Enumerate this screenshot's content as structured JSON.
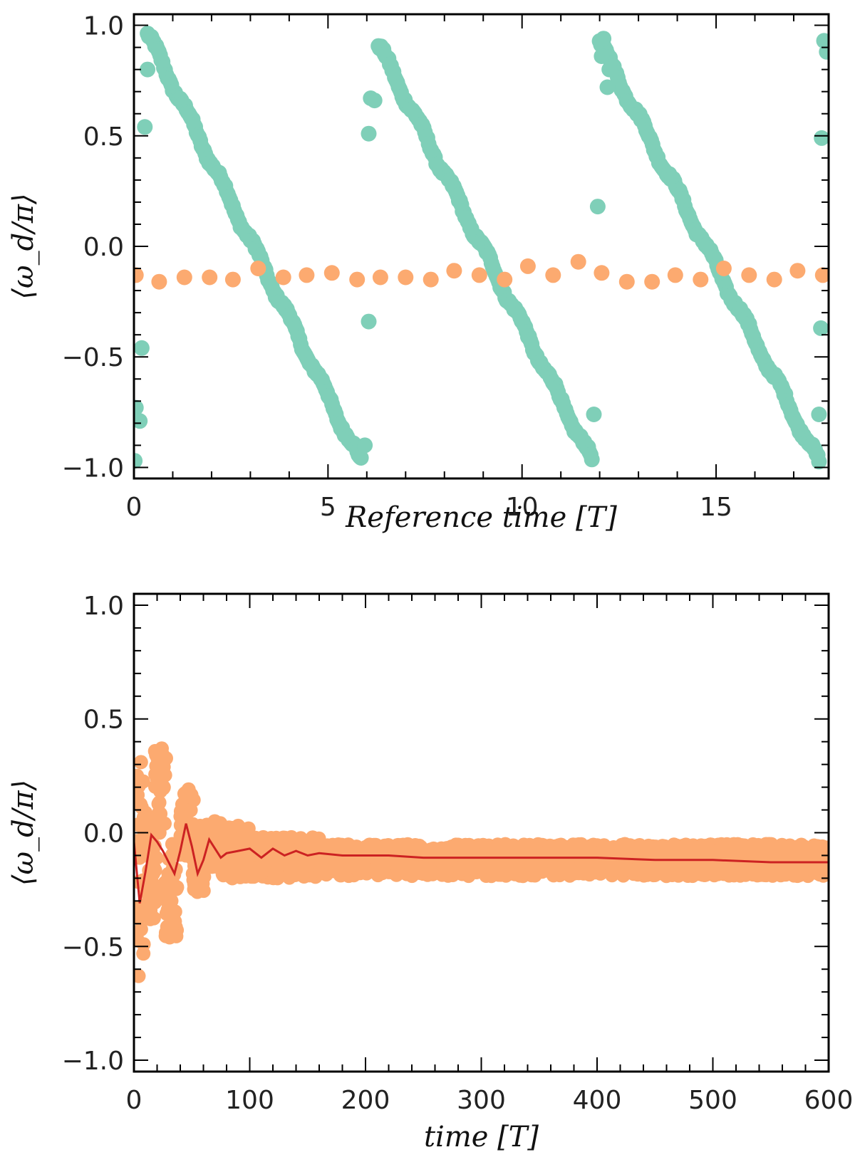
{
  "chart_data": [
    {
      "type": "scatter",
      "xlabel": "Reference time [T]",
      "ylabel": "⟨ω_d/π⟩",
      "xlim": [
        0,
        17.9
      ],
      "ylim": [
        -1.05,
        1.05
      ],
      "xticks": [
        0,
        5,
        10,
        15
      ],
      "xtick_labels": [
        "0",
        "5",
        "10",
        "15"
      ],
      "yticks": [
        1.0,
        0.5,
        0.0,
        -0.5,
        -1.0
      ],
      "ytick_labels": [
        "1.0",
        "0.5",
        "0.0",
        "−0.5",
        "−1.0"
      ],
      "colors": {
        "teal": "#7fcfb8",
        "orange": "#fcaa70"
      },
      "series": [
        {
          "name": "teal sawtooth",
          "color": "#7fcfb8",
          "segments": [
            {
              "x_start": 0.35,
              "x_end": 5.85,
              "y_start": 0.96,
              "y_end": -0.98
            },
            {
              "x_start": 6.3,
              "x_end": 11.8,
              "y_start": 0.91,
              "y_end": -0.97
            },
            {
              "x_start": 12.0,
              "x_end": 17.65,
              "y_start": 0.92,
              "y_end": -0.98
            }
          ],
          "outliers": [
            [
              0.05,
              -0.73
            ],
            [
              0.15,
              -0.79
            ],
            [
              0.02,
              -0.97
            ],
            [
              0.2,
              -0.46
            ],
            [
              0.28,
              0.54
            ],
            [
              0.35,
              0.8
            ],
            [
              5.95,
              -0.9
            ],
            [
              6.05,
              -0.34
            ],
            [
              6.05,
              0.51
            ],
            [
              6.1,
              0.67
            ],
            [
              6.2,
              0.66
            ],
            [
              11.85,
              -0.76
            ],
            [
              11.95,
              0.18
            ],
            [
              12.05,
              0.86
            ],
            [
              12.1,
              0.94
            ],
            [
              12.2,
              0.72
            ],
            [
              12.25,
              0.8
            ],
            [
              17.65,
              -0.76
            ],
            [
              17.7,
              -0.37
            ],
            [
              17.72,
              0.49
            ],
            [
              17.78,
              0.93
            ],
            [
              17.85,
              0.88
            ]
          ]
        },
        {
          "name": "orange",
          "color": "#fcaa70",
          "points": [
            [
              0.05,
              -0.13
            ],
            [
              0.65,
              -0.16
            ],
            [
              1.3,
              -0.14
            ],
            [
              1.95,
              -0.14
            ],
            [
              2.55,
              -0.15
            ],
            [
              3.2,
              -0.1
            ],
            [
              3.85,
              -0.14
            ],
            [
              4.45,
              -0.13
            ],
            [
              5.1,
              -0.12
            ],
            [
              5.75,
              -0.15
            ],
            [
              6.35,
              -0.14
            ],
            [
              7.0,
              -0.14
            ],
            [
              7.65,
              -0.15
            ],
            [
              8.25,
              -0.11
            ],
            [
              8.9,
              -0.13
            ],
            [
              9.55,
              -0.15
            ],
            [
              10.15,
              -0.09
            ],
            [
              10.8,
              -0.13
            ],
            [
              11.45,
              -0.07
            ],
            [
              12.05,
              -0.12
            ],
            [
              12.7,
              -0.16
            ],
            [
              13.35,
              -0.16
            ],
            [
              13.95,
              -0.13
            ],
            [
              14.6,
              -0.15
            ],
            [
              15.2,
              -0.1
            ],
            [
              15.85,
              -0.13
            ],
            [
              16.5,
              -0.15
            ],
            [
              17.1,
              -0.11
            ],
            [
              17.75,
              -0.13
            ]
          ]
        }
      ]
    },
    {
      "type": "scatter",
      "xlabel": "time [T]",
      "ylabel": "⟨ω_d/π⟩",
      "xlim": [
        0,
        600
      ],
      "ylim": [
        -1.05,
        1.05
      ],
      "xticks": [
        0,
        100,
        200,
        300,
        400,
        500,
        600
      ],
      "xtick_labels": [
        "0",
        "100",
        "200",
        "300",
        "400",
        "500",
        "600"
      ],
      "yticks": [
        1.0,
        0.5,
        0.0,
        -0.5,
        -1.0
      ],
      "ytick_labels": [
        "1.0",
        "0.5",
        "0.0",
        "−0.5",
        "−1.0"
      ],
      "series": [
        {
          "name": "orange scatter",
          "color": "#fcaa70",
          "bursts": [
            {
              "x_start": 0,
              "x_end": 10,
              "y_min": -0.63,
              "y_max": 0.31
            },
            {
              "x_start": 10,
              "x_end": 20,
              "y_min": -0.38,
              "y_max": 0.05
            },
            {
              "x_start": 18,
              "x_end": 28,
              "y_min": 0.0,
              "y_max": 0.37
            },
            {
              "x_start": 26,
              "x_end": 38,
              "y_min": -0.46,
              "y_max": -0.05
            },
            {
              "x_start": 40,
              "x_end": 52,
              "y_min": -0.1,
              "y_max": 0.19
            },
            {
              "x_start": 50,
              "x_end": 62,
              "y_min": -0.26,
              "y_max": 0.03
            },
            {
              "x_start": 62,
              "x_end": 75,
              "y_min": -0.15,
              "y_max": 0.05
            },
            {
              "x_start": 75,
              "x_end": 100,
              "y_min": -0.2,
              "y_max": 0.03
            },
            {
              "x_start": 100,
              "x_end": 160,
              "y_min": -0.2,
              "y_max": -0.02
            },
            {
              "x_start": 160,
              "x_end": 600,
              "y_min": -0.19,
              "y_max": -0.05
            }
          ]
        },
        {
          "name": "red running average",
          "color": "#cc2222",
          "x": [
            0,
            5,
            10,
            15,
            20,
            25,
            30,
            35,
            40,
            45,
            50,
            55,
            60,
            65,
            70,
            75,
            80,
            90,
            100,
            110,
            120,
            130,
            140,
            150,
            160,
            180,
            200,
            220,
            250,
            300,
            350,
            400,
            450,
            500,
            550,
            600
          ],
          "y": [
            -0.04,
            -0.31,
            -0.17,
            -0.01,
            -0.04,
            -0.08,
            -0.13,
            -0.18,
            -0.08,
            0.04,
            -0.06,
            -0.18,
            -0.12,
            -0.03,
            -0.07,
            -0.11,
            -0.09,
            -0.08,
            -0.07,
            -0.11,
            -0.07,
            -0.1,
            -0.08,
            -0.1,
            -0.09,
            -0.1,
            -0.1,
            -0.1,
            -0.11,
            -0.11,
            -0.11,
            -0.11,
            -0.12,
            -0.12,
            -0.13,
            -0.13
          ]
        }
      ]
    }
  ]
}
